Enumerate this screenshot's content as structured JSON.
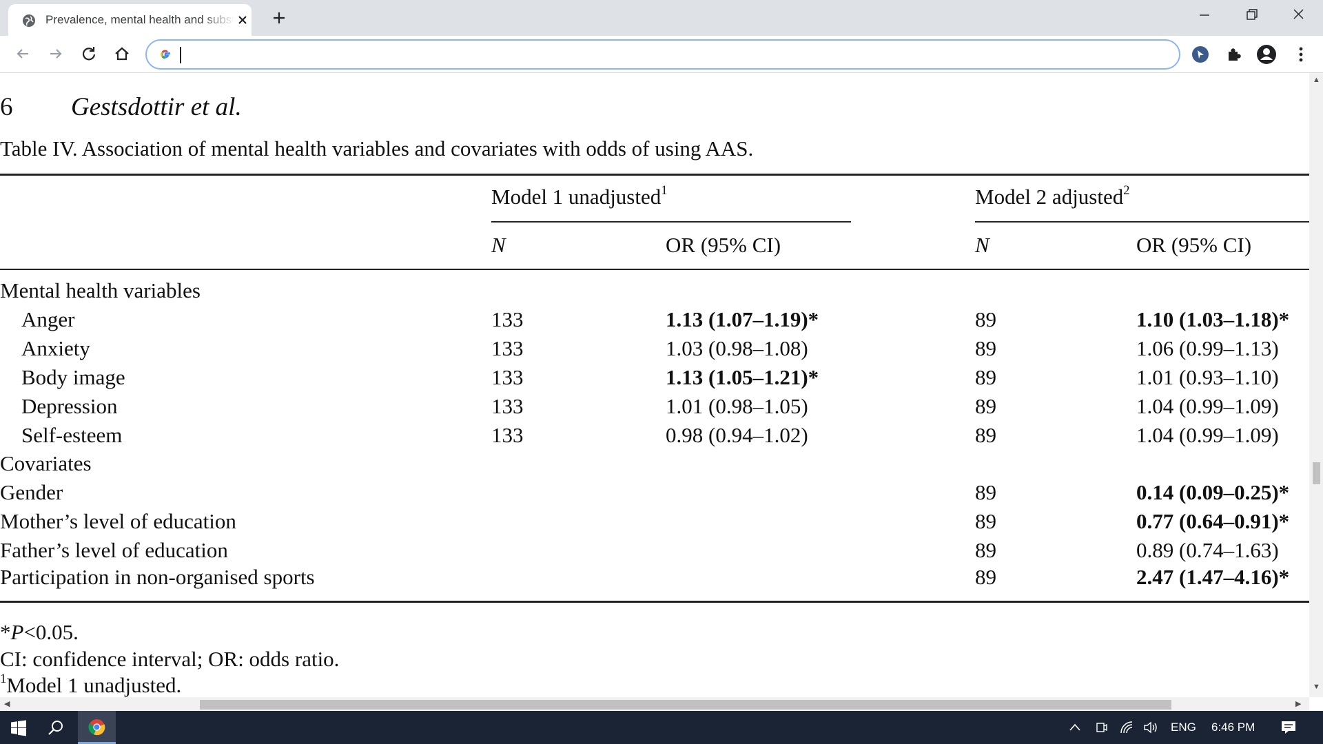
{
  "browser": {
    "tab_title": "Prevalence, mental health and substance use",
    "address_value": ""
  },
  "document": {
    "page_number": "6",
    "running_head": "Gestsdottir et al.",
    "table_caption": "Table IV.  Association of mental health variables and covariates with odds of using AAS.",
    "model1_header": "Model 1 unadjusted",
    "model1_sup": "1",
    "model2_header": "Model 2 adjusted",
    "model2_sup": "2",
    "col_n": "N",
    "col_or": "OR (95% CI)",
    "section_mental": "Mental health variables",
    "section_covariates": "Covariates",
    "rows": [
      {
        "label": "Anger",
        "n1": "133",
        "or1": "1.13 (1.07–1.19)*",
        "or1_bold": true,
        "n2": "89",
        "or2": "1.10 (1.03–1.18)*",
        "or2_bold": true
      },
      {
        "label": "Anxiety",
        "n1": "133",
        "or1": "1.03 (0.98–1.08)",
        "or1_bold": false,
        "n2": "89",
        "or2": "1.06 (0.99–1.13)",
        "or2_bold": false
      },
      {
        "label": "Body image",
        "n1": "133",
        "or1": "1.13 (1.05–1.21)*",
        "or1_bold": true,
        "n2": "89",
        "or2": "1.01 (0.93–1.10)",
        "or2_bold": false
      },
      {
        "label": "Depression",
        "n1": "133",
        "or1": "1.01 (0.98–1.05)",
        "or1_bold": false,
        "n2": "89",
        "or2": "1.04 (0.99–1.09)",
        "or2_bold": false
      },
      {
        "label": "Self-esteem",
        "n1": "133",
        "or1": "0.98 (0.94–1.02)",
        "or1_bold": false,
        "n2": "89",
        "or2": "1.04 (0.99–1.09)",
        "or2_bold": false
      }
    ],
    "covariates": [
      {
        "label": "Gender",
        "n2": "89",
        "or2": "0.14 (0.09–0.25)*",
        "or2_bold": true
      },
      {
        "label": "Mother’s level of education",
        "n2": "89",
        "or2": "0.77 (0.64–0.91)*",
        "or2_bold": true
      },
      {
        "label": "Father’s level of education",
        "n2": "89",
        "or2": "0.89 (0.74–1.63)",
        "or2_bold": false
      },
      {
        "label": "Participation in non-organised sports",
        "n2": "89",
        "or2": "2.47 (1.47–4.16)*",
        "or2_bold": true
      }
    ],
    "footnote_p_star": "*",
    "footnote_p_letter": "P",
    "footnote_p_rest": "<0.05.",
    "footnote_ci": "CI: confidence interval; OR: odds ratio.",
    "footnote_model1_sup": "1",
    "footnote_model1": "Model 1 unadjusted."
  },
  "taskbar": {
    "language": "ENG",
    "time": "6:46 PM"
  },
  "colors": {
    "tabstrip": "#dee1e6",
    "omnibox_border": "#8ab4f8",
    "taskbar": "#1b2434"
  }
}
